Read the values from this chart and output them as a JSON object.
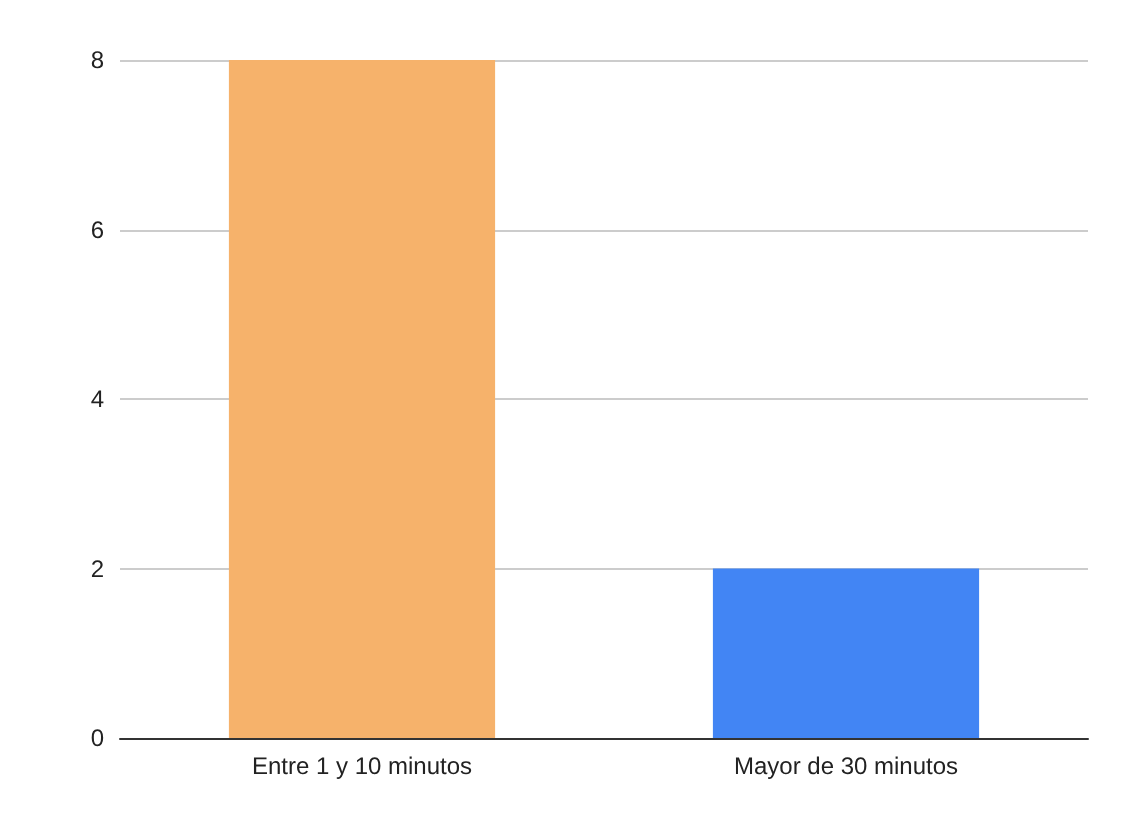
{
  "chart_data": {
    "type": "bar",
    "categories": [
      "Entre 1 y 10 minutos",
      "Mayor de 30 minutos"
    ],
    "values": [
      8,
      2
    ],
    "colors": [
      "#f6b26b",
      "#4285f4"
    ],
    "ylim": [
      0,
      8
    ],
    "yticks": [
      0,
      2,
      4,
      6,
      8
    ],
    "grid": "y"
  }
}
